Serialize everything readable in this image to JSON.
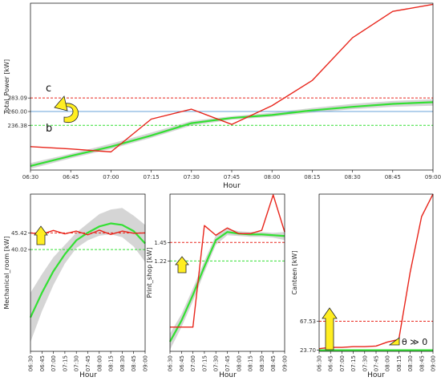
{
  "chart_data": [
    {
      "id": "total",
      "type": "line",
      "xlabel": "Hour",
      "ylabel": "Total_Power [kW]",
      "x": [
        "06:30",
        "06:45",
        "07:00",
        "07:15",
        "07:30",
        "07:45",
        "08:00",
        "08:15",
        "08:30",
        "08:45",
        "09:00"
      ],
      "ylim": [
        160,
        445
      ],
      "yticks": [
        236.38,
        260.0,
        283.09
      ],
      "ytick_labels": [
        "236.38",
        "260.00",
        "283.09"
      ],
      "series": [
        {
          "role": "actual",
          "color": "#e8251b",
          "values": [
            200,
            196,
            191,
            247,
            264,
            238,
            270,
            313,
            386,
            431,
            443
          ]
        },
        {
          "role": "fit",
          "color": "#33e033",
          "values": [
            167,
            184,
            200,
            219,
            240,
            249,
            254,
            262,
            268,
            273,
            276
          ]
        },
        {
          "role": "fit_band_lower",
          "values": [
            162,
            180,
            196,
            215,
            236,
            246,
            251,
            258,
            264,
            268,
            270
          ]
        },
        {
          "role": "fit_band_upper",
          "values": [
            172,
            188,
            205,
            224,
            244,
            252,
            258,
            266,
            273,
            278,
            281
          ]
        }
      ],
      "hlines": [
        {
          "value": 283.09,
          "color": "#e8251b",
          "style": "dashed"
        },
        {
          "value": 260.0,
          "color": "#6aa3d8",
          "style": "solid"
        },
        {
          "value": 236.38,
          "color": "#33e033",
          "style": "dashed"
        }
      ],
      "annotations": {
        "c": "c",
        "b": "b"
      }
    },
    {
      "id": "mech",
      "type": "line",
      "xlabel": "Hour",
      "ylabel": "Mechanical_room [kW]",
      "x": [
        "06:30",
        "06:45",
        "07:00",
        "07:15",
        "07:30",
        "07:45",
        "08:00",
        "08:15",
        "08:30",
        "08:45",
        "09:00"
      ],
      "ylim": [
        7,
        58
      ],
      "yticks": [
        40.02,
        45.42
      ],
      "ytick_labels": [
        "40.02",
        "45.42"
      ],
      "series": [
        {
          "role": "actual",
          "color": "#e8251b",
          "values": [
            45.4,
            45.0,
            46.2,
            45.1,
            46.0,
            44.8,
            46.3,
            44.9,
            46.0,
            45.3,
            45.4
          ]
        },
        {
          "role": "fit",
          "color": "#33e033",
          "values": [
            18.0,
            26.0,
            33.0,
            38.5,
            43.0,
            45.5,
            47.5,
            48.5,
            48.0,
            46.0,
            42.0
          ]
        },
        {
          "role": "fit_band_lower",
          "values": [
            10.0,
            20.0,
            28.5,
            35.5,
            40.5,
            43.0,
            44.5,
            45.0,
            44.0,
            41.0,
            36.0
          ]
        },
        {
          "role": "fit_band_upper",
          "values": [
            26.0,
            32.0,
            37.5,
            41.5,
            45.5,
            48.5,
            51.5,
            53.0,
            53.5,
            51.0,
            48.0
          ]
        }
      ],
      "hlines": [
        {
          "value": 45.42,
          "color": "#e8251b",
          "style": "dashed"
        },
        {
          "value": 40.02,
          "color": "#33e033",
          "style": "dashed"
        }
      ]
    },
    {
      "id": "print",
      "type": "line",
      "xlabel": "Hour",
      "ylabel": "Print_shop [kW]",
      "x": [
        "06:30",
        "06:45",
        "07:00",
        "07:15",
        "07:30",
        "07:45",
        "08:00",
        "08:15",
        "08:30",
        "08:45",
        "09:00"
      ],
      "ylim": [
        0.1,
        2.05
      ],
      "yticks": [
        1.22,
        1.45
      ],
      "ytick_labels": [
        "1.22",
        "1.45"
      ],
      "series": [
        {
          "role": "actual",
          "color": "#e8251b",
          "values": [
            0.4,
            0.4,
            0.4,
            1.66,
            1.54,
            1.63,
            1.56,
            1.56,
            1.6,
            2.04,
            1.58
          ]
        },
        {
          "role": "fit",
          "color": "#33e033",
          "values": [
            0.22,
            0.48,
            0.8,
            1.15,
            1.48,
            1.58,
            1.56,
            1.55,
            1.55,
            1.54,
            1.53
          ]
        },
        {
          "role": "fit_band_lower",
          "values": [
            0.12,
            0.4,
            0.72,
            1.08,
            1.42,
            1.54,
            1.53,
            1.52,
            1.52,
            1.51,
            1.48
          ]
        },
        {
          "role": "fit_band_upper",
          "values": [
            0.32,
            0.56,
            0.88,
            1.22,
            1.54,
            1.62,
            1.59,
            1.58,
            1.58,
            1.57,
            1.58
          ]
        }
      ],
      "hlines": [
        {
          "value": 1.45,
          "color": "#e8251b",
          "style": "dashed"
        },
        {
          "value": 1.22,
          "color": "#33e033",
          "style": "dashed"
        }
      ]
    },
    {
      "id": "canteen",
      "type": "line",
      "xlabel": "Hour",
      "ylabel": "Canteen [kW]",
      "x": [
        "06:30",
        "06:45",
        "07:00",
        "07:15",
        "07:30",
        "07:45",
        "08:00",
        "08:15",
        "08:30",
        "08:45",
        "09:00"
      ],
      "ylim": [
        22,
        260
      ],
      "yticks": [
        23.7,
        67.53
      ],
      "ytick_labels": [
        "23.70",
        "67.53"
      ],
      "series": [
        {
          "role": "actual",
          "color": "#e8251b",
          "values": [
            26,
            28,
            28,
            29,
            29,
            30,
            36,
            40,
            142,
            226,
            260
          ]
        },
        {
          "role": "fit",
          "color": "#33e033",
          "values": [
            23.7,
            23.7,
            23.7,
            23.7,
            23.7,
            23.7,
            23.7,
            23.7,
            23.7,
            23.7,
            23.7
          ]
        },
        {
          "role": "fit_band_lower",
          "values": [
            22.8,
            22.8,
            22.8,
            22.8,
            22.8,
            22.8,
            22.8,
            22.8,
            22.8,
            22.8,
            22.8
          ]
        },
        {
          "role": "fit_band_upper",
          "values": [
            24.6,
            24.6,
            24.6,
            24.6,
            24.6,
            24.6,
            24.6,
            24.6,
            24.6,
            24.6,
            24.6
          ]
        }
      ],
      "hlines": [
        {
          "value": 67.53,
          "color": "#e8251b",
          "style": "dashed"
        },
        {
          "value": 23.7,
          "color": "#33e033",
          "style": "dashed"
        }
      ],
      "annotations": {
        "theta": "θ ≫ 0"
      }
    }
  ]
}
